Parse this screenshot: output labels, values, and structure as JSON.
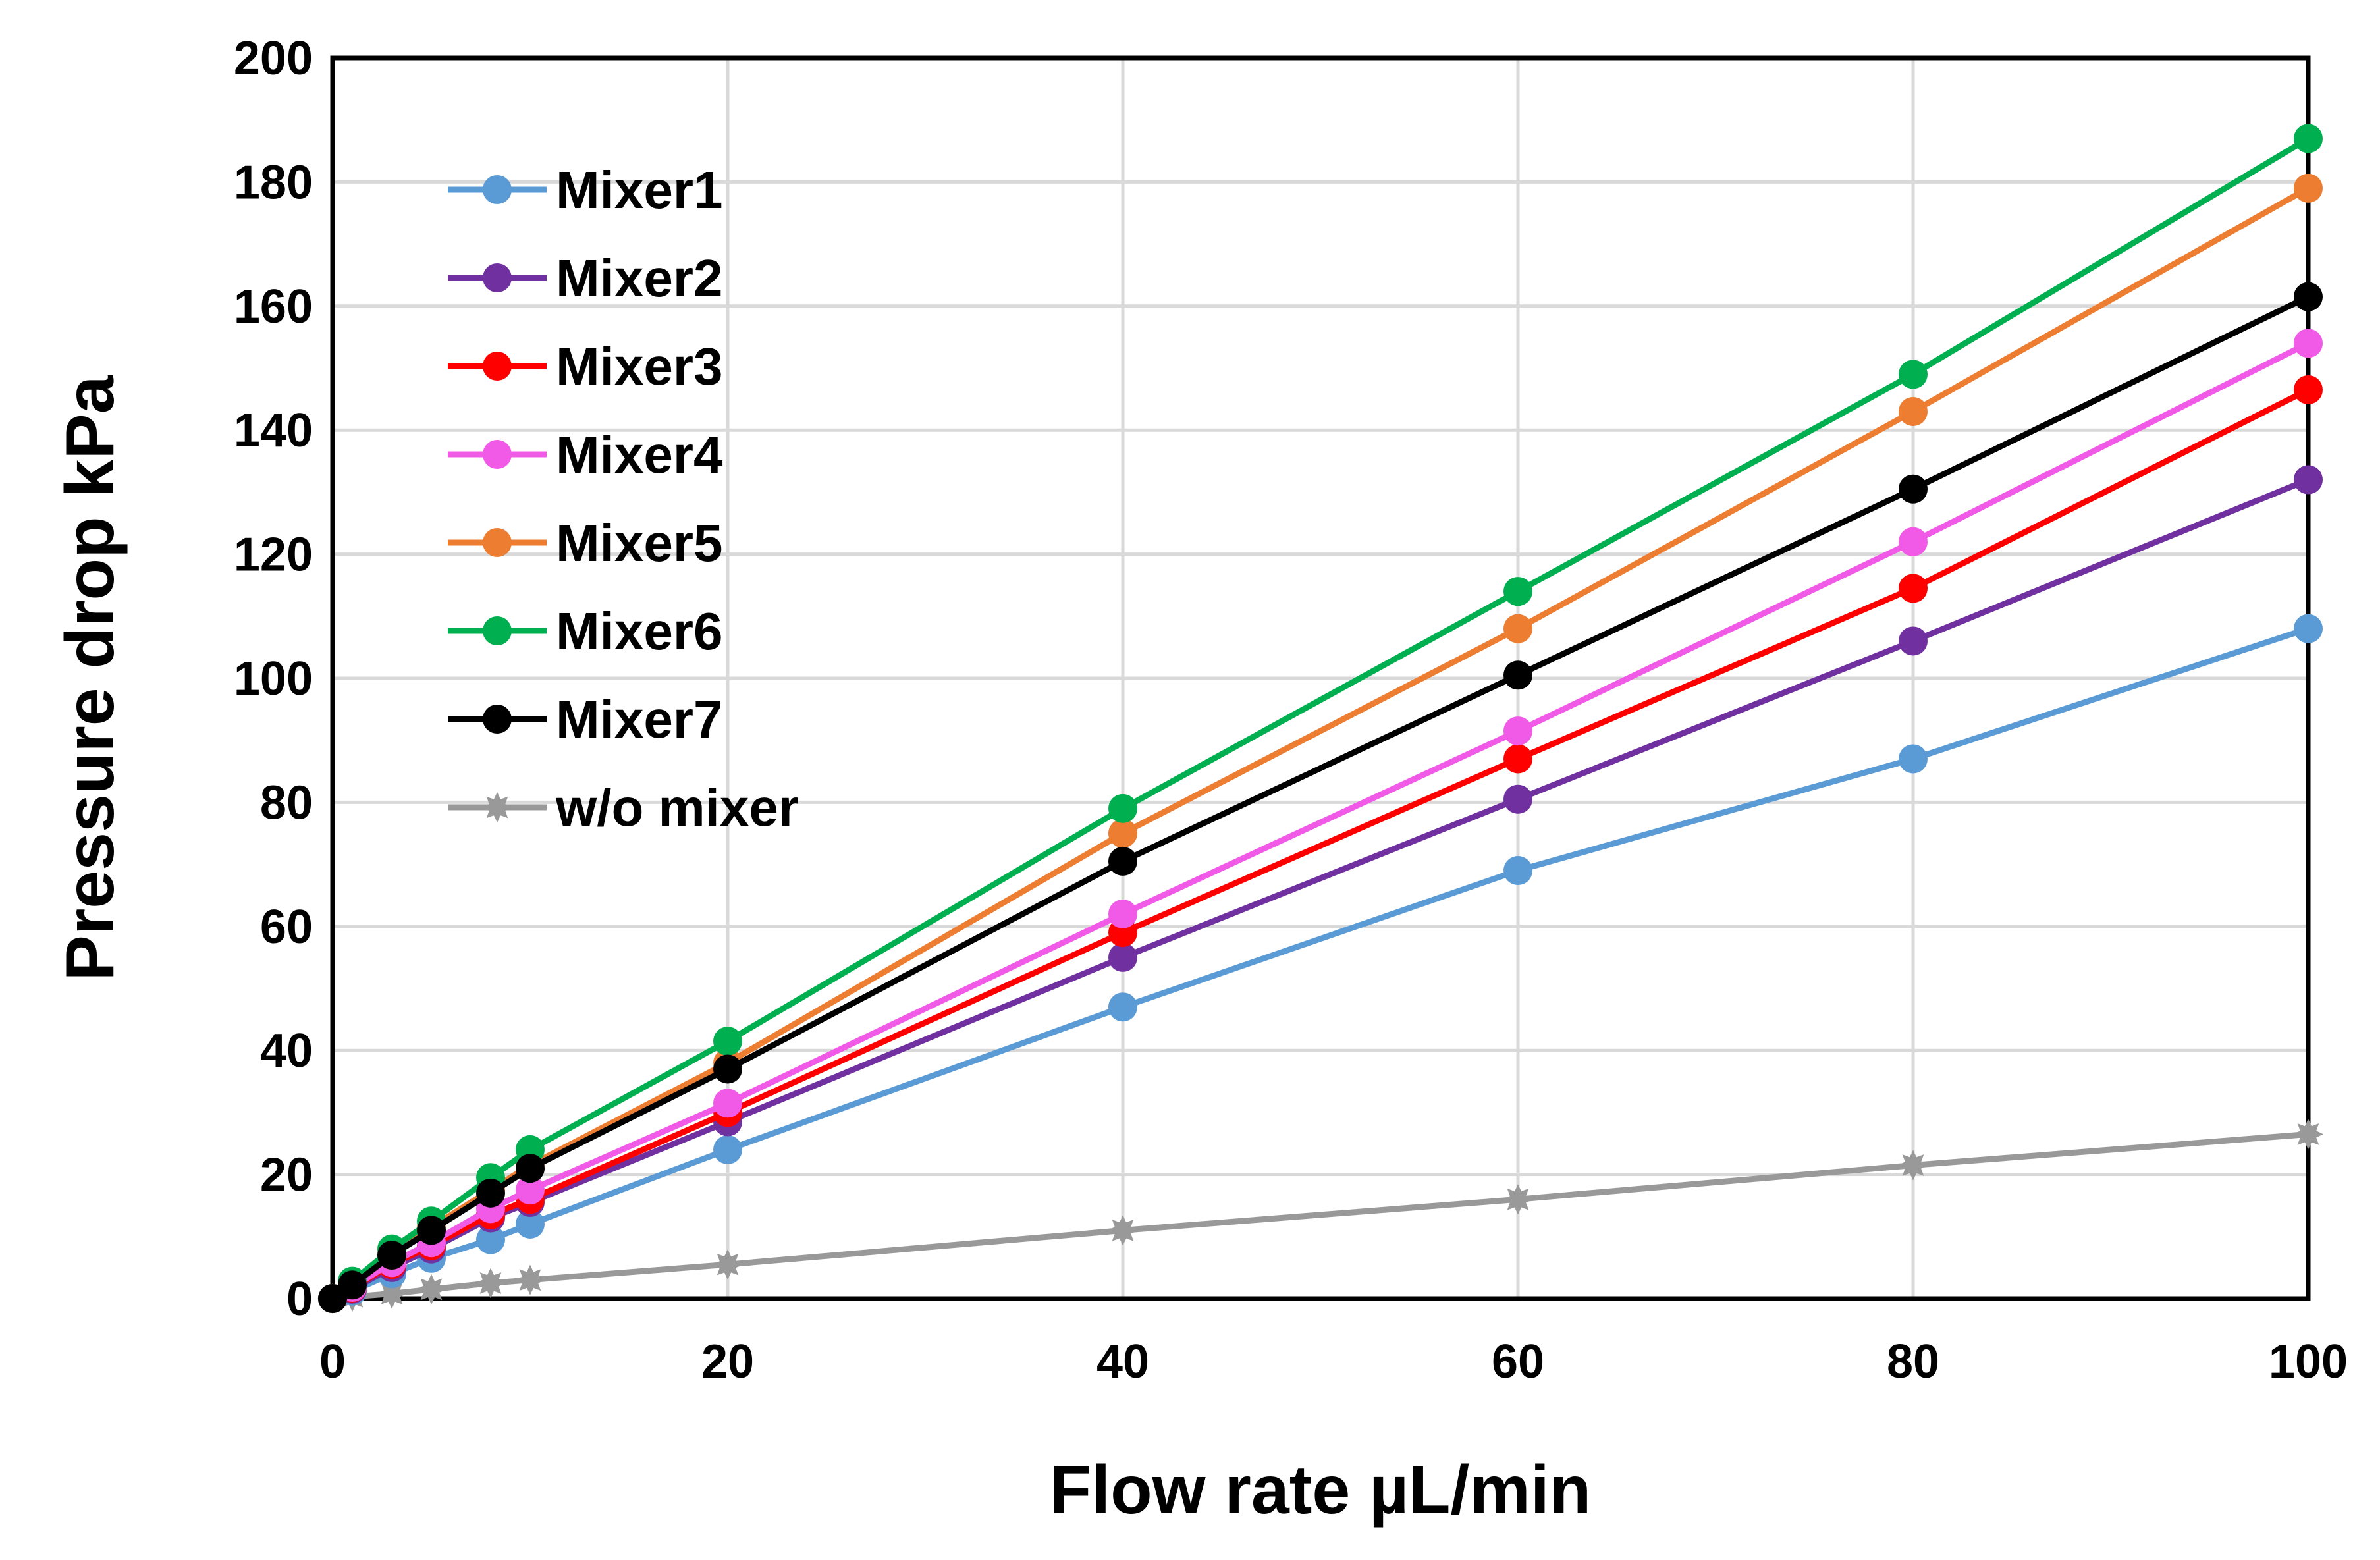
{
  "chart_data": {
    "type": "line",
    "title": "",
    "xlabel": "Flow rate  µL/min",
    "ylabel": "Pressure drop   kPa",
    "xlim": [
      0,
      100
    ],
    "ylim": [
      0,
      200
    ],
    "xticks": [
      0,
      20,
      40,
      60,
      80,
      100
    ],
    "yticks": [
      0,
      20,
      40,
      60,
      80,
      100,
      120,
      140,
      160,
      180,
      200
    ],
    "grid": true,
    "legend_position": "top-left",
    "x": [
      0,
      1,
      3,
      5,
      8,
      10,
      20,
      40,
      60,
      80,
      100
    ],
    "series": [
      {
        "name": "Mixer1",
        "color": "#5b9bd5",
        "marker": "circle",
        "values": [
          0,
          1.2,
          4,
          6.5,
          9.5,
          12,
          24,
          47,
          69,
          87,
          108
        ]
      },
      {
        "name": "Mixer2",
        "color": "#7030a0",
        "marker": "circle",
        "values": [
          0,
          1.5,
          5,
          8,
          13,
          15.5,
          28.5,
          55,
          80.5,
          106,
          132
        ]
      },
      {
        "name": "Mixer3",
        "color": "#ff0000",
        "marker": "circle",
        "values": [
          0,
          1.7,
          5.5,
          8.5,
          13.5,
          16,
          30,
          59,
          87,
          114.5,
          146.5
        ]
      },
      {
        "name": "Mixer4",
        "color": "#f05ae6",
        "marker": "circle",
        "values": [
          0,
          1.8,
          5.8,
          9,
          14.5,
          17.5,
          31.5,
          62,
          91.5,
          122,
          154
        ]
      },
      {
        "name": "Mixer5",
        "color": "#ed7d31",
        "marker": "circle",
        "values": [
          0,
          2.3,
          7,
          11.5,
          17.5,
          21.5,
          38,
          75,
          108,
          143,
          179
        ]
      },
      {
        "name": "Mixer6",
        "color": "#00b050",
        "marker": "circle",
        "values": [
          0,
          2.8,
          8,
          12.5,
          19.5,
          24,
          41.5,
          79,
          114,
          149,
          187
        ]
      },
      {
        "name": "Mixer7",
        "color": "#000000",
        "marker": "circle",
        "values": [
          0,
          2.2,
          7,
          11,
          17,
          21,
          37,
          70.5,
          100.5,
          130.5,
          161.5
        ]
      },
      {
        "name": "w/o mixer",
        "color": "#999999",
        "marker": "star",
        "values": [
          0,
          0.3,
          0.8,
          1.5,
          2.5,
          3,
          5.5,
          11,
          16,
          21.5,
          26.5
        ]
      }
    ]
  }
}
